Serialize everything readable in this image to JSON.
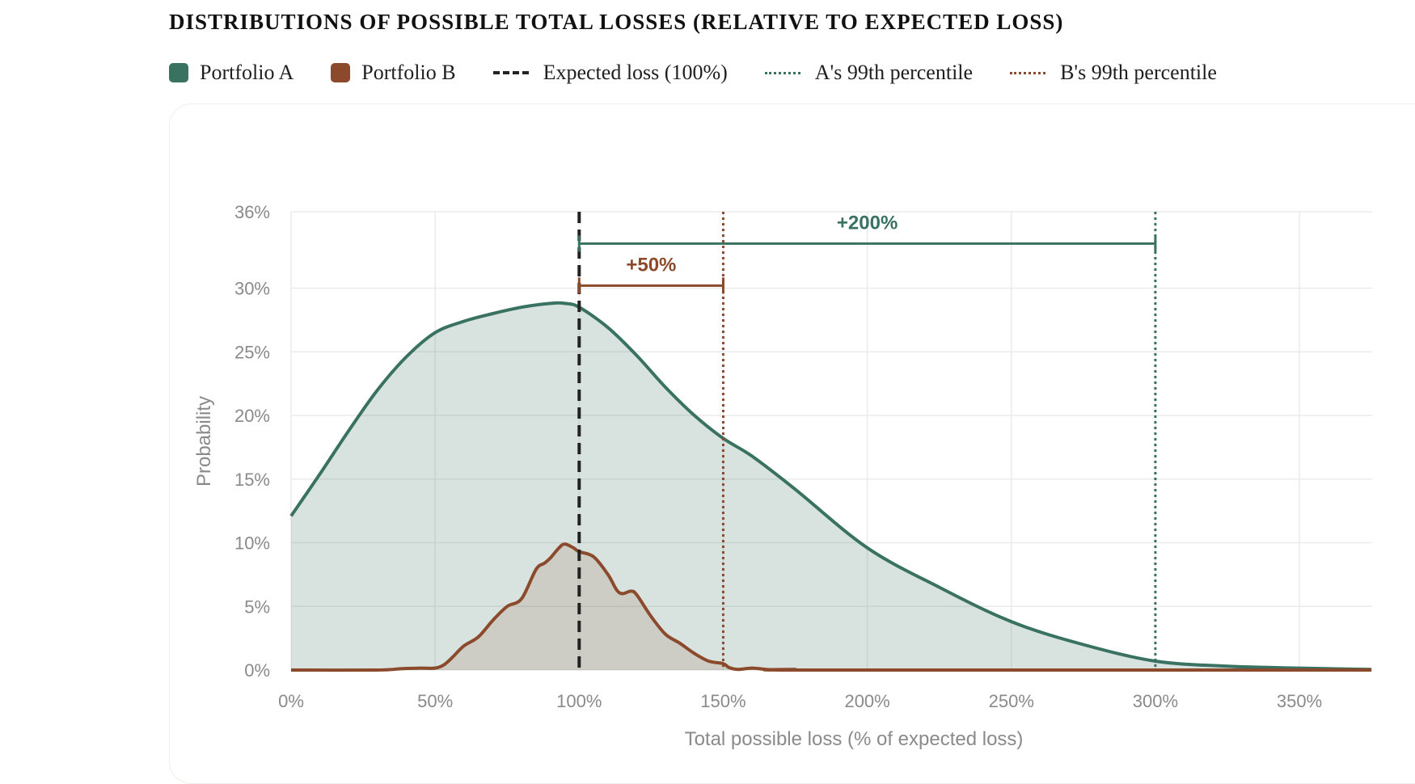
{
  "title": "DISTRIBUTIONS OF POSSIBLE TOTAL LOSSES (RELATIVE TO EXPECTED LOSS)",
  "legend": [
    {
      "label": "Portfolio A",
      "kind": "swatch",
      "color": "#3a7261"
    },
    {
      "label": "Portfolio B",
      "kind": "swatch",
      "color": "#8b4a2b"
    },
    {
      "label": "Expected loss (100%)",
      "kind": "dashed",
      "color": "#222222"
    },
    {
      "label": "A's 99th percentile",
      "kind": "dotted",
      "color": "#3a7261"
    },
    {
      "label": "B's 99th percentile",
      "kind": "dotted",
      "color": "#8b4a2b"
    }
  ],
  "chart_data": {
    "type": "area",
    "xlabel": "Total possible loss (% of expected loss)",
    "ylabel": "Probability",
    "xlim": [
      0,
      375
    ],
    "ylim": [
      0,
      36
    ],
    "x_ticks": [
      "0%",
      "50%",
      "100%",
      "150%",
      "200%",
      "250%",
      "300%",
      "350%"
    ],
    "x_tick_values": [
      0,
      50,
      100,
      150,
      200,
      250,
      300,
      350
    ],
    "y_ticks": [
      "0%",
      "5%",
      "10%",
      "15%",
      "20%",
      "25%",
      "30%",
      "36%"
    ],
    "y_tick_values": [
      0,
      5,
      10,
      15,
      20,
      25,
      30,
      36
    ],
    "grid": true,
    "series": [
      {
        "name": "Portfolio A",
        "color": "#3a7261",
        "fill": "rgba(58,114,97,0.20)",
        "x": [
          0,
          10,
          20,
          30,
          40,
          50,
          60,
          70,
          80,
          90,
          95,
          100,
          110,
          120,
          130,
          140,
          150,
          160,
          175,
          200,
          225,
          250,
          275,
          300,
          325,
          350,
          375
        ],
        "y": [
          12.1,
          15.4,
          18.8,
          22.0,
          24.6,
          26.5,
          27.4,
          28.0,
          28.5,
          28.8,
          28.8,
          28.5,
          26.9,
          24.7,
          22.2,
          20.0,
          18.2,
          16.8,
          14.2,
          9.6,
          6.5,
          3.8,
          2.0,
          0.7,
          0.3,
          0.15,
          0.05
        ]
      },
      {
        "name": "Portfolio B",
        "color": "#8b4a2b",
        "fill": "rgba(139,74,43,0.14)",
        "x": [
          0,
          30,
          38,
          45,
          50,
          53,
          56,
          60,
          65,
          70,
          75,
          80,
          85,
          88,
          90,
          93,
          95,
          98,
          100,
          105,
          110,
          113,
          115,
          118,
          120,
          125,
          130,
          135,
          140,
          145,
          150,
          152,
          155,
          160,
          165,
          170,
          175,
          180,
          375
        ],
        "y": [
          0,
          0,
          0.1,
          0.15,
          0.15,
          0.4,
          1.0,
          1.9,
          2.6,
          3.9,
          5.0,
          5.6,
          7.9,
          8.4,
          8.8,
          9.6,
          9.9,
          9.6,
          9.3,
          8.9,
          7.5,
          6.3,
          6.0,
          6.2,
          5.9,
          4.2,
          2.8,
          2.1,
          1.3,
          0.7,
          0.5,
          0.2,
          0.05,
          0.15,
          0.05,
          0.0,
          0.05,
          0.0,
          0.0
        ]
      }
    ],
    "reference_lines": [
      {
        "name": "Expected loss (100%)",
        "x": 100,
        "color": "#222222",
        "style": "dashed"
      },
      {
        "name": "B's 99th percentile",
        "x": 150,
        "color": "#8b4a2b",
        "style": "dotted"
      },
      {
        "name": "A's 99th percentile",
        "x": 300,
        "color": "#3a7261",
        "style": "dotted"
      }
    ],
    "brackets": [
      {
        "label": "+200%",
        "x0": 100,
        "x1": 300,
        "y": 33.5,
        "color": "#3a7261"
      },
      {
        "label": "+50%",
        "x0": 100,
        "x1": 150,
        "y": 30.2,
        "color": "#8b4a2b"
      }
    ]
  }
}
